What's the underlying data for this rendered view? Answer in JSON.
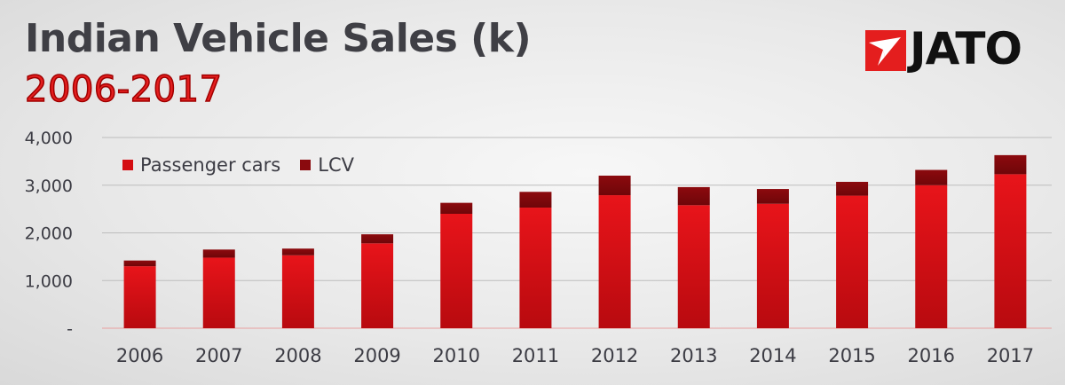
{
  "chart_data": {
    "type": "bar",
    "stacked": true,
    "title": "Indian Vehicle Sales (k)",
    "subtitle": "2006-2017",
    "categories": [
      "2006",
      "2007",
      "2008",
      "2009",
      "2010",
      "2011",
      "2012",
      "2013",
      "2014",
      "2015",
      "2016",
      "2017"
    ],
    "series": [
      {
        "name": "Passenger cars",
        "color": "#d40d12",
        "values": [
          1300,
          1480,
          1530,
          1780,
          2400,
          2530,
          2790,
          2580,
          2610,
          2780,
          3000,
          3230
        ]
      },
      {
        "name": "LCV",
        "color": "#8a0a0e",
        "values": [
          120,
          170,
          140,
          190,
          230,
          330,
          410,
          380,
          310,
          290,
          320,
          400
        ]
      }
    ],
    "ylim": [
      0,
      4000
    ],
    "yticks": [
      0,
      1000,
      2000,
      3000,
      4000
    ],
    "ytick_labels": [
      "-",
      "1,000",
      "2,000",
      "3,000",
      "4,000"
    ],
    "grid": true,
    "legend_position": "top-left"
  },
  "brand": {
    "name": "JATO",
    "accent": "#e41e1e"
  }
}
